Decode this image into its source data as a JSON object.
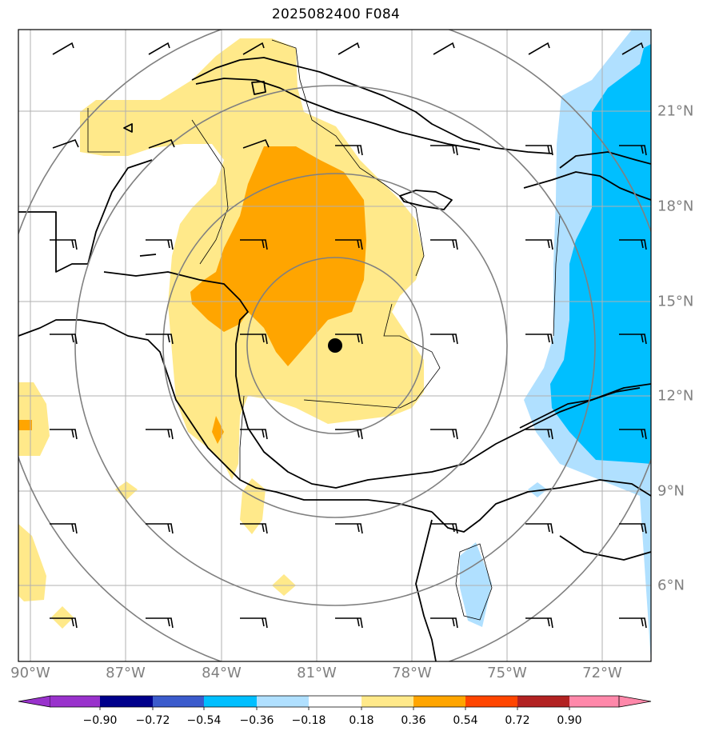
{
  "title": "2025082400 F084",
  "map": {
    "center_marker": "storm-center",
    "lon_labels": [
      "90°W",
      "87°W",
      "84°W",
      "81°W",
      "78°W",
      "75°W",
      "72°W"
    ],
    "lat_labels": [
      "21°N",
      "18°N",
      "15°N",
      "12°N",
      "9°N",
      "6°N"
    ],
    "range_rings": 4
  },
  "colorbar": {
    "ticks": [
      "−0.90",
      "−0.72",
      "−0.54",
      "−0.36",
      "−0.18",
      "0.18",
      "0.36",
      "0.54",
      "0.72",
      "0.90"
    ],
    "colors": [
      "#9932cc",
      "#00008b",
      "#3b5bcc",
      "#00bfff",
      "#b0e0ff",
      "#ffffff",
      "#ffe98a",
      "#ffa500",
      "#ff4500",
      "#b22222",
      "#ff88aa"
    ],
    "extend": "both"
  }
}
